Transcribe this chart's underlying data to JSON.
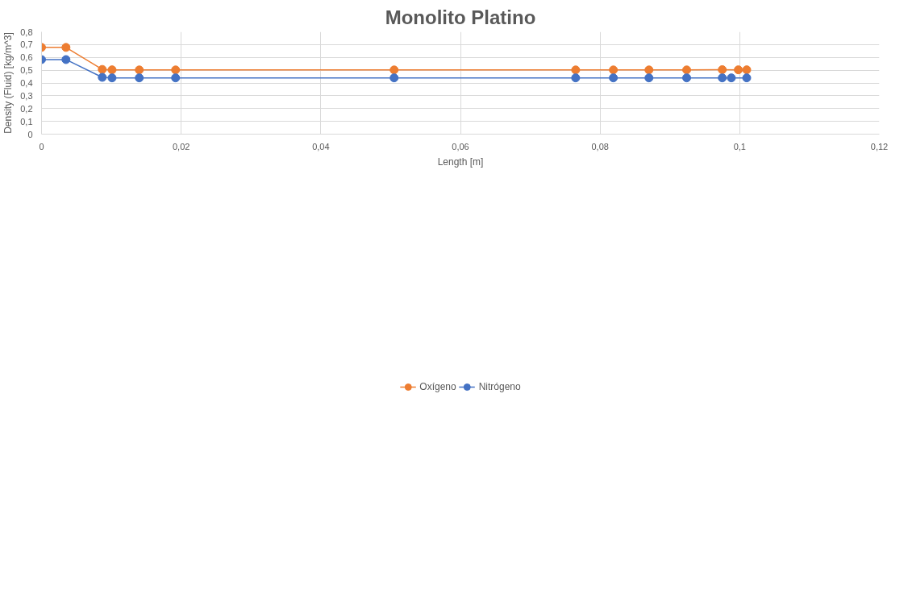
{
  "chart_data": {
    "type": "line",
    "title": "Monolito Platino",
    "xlabel": "Length [m]",
    "ylabel": "Density (Fluid) [kg/m^3]",
    "series": [
      {
        "name": "Oxígeno",
        "color": "#ed7d31",
        "x": [
          0,
          0.0035,
          0.0087,
          0.0101,
          0.014,
          0.0192,
          0.0505,
          0.0765,
          0.0819,
          0.087,
          0.0924,
          0.0975,
          0.0998,
          0.101
        ],
        "values": [
          0.678,
          0.678,
          0.506,
          0.503,
          0.502,
          0.502,
          0.502,
          0.502,
          0.502,
          0.502,
          0.502,
          0.504,
          0.503,
          0.503
        ]
      },
      {
        "name": "Nitrógeno",
        "color": "#4472c4",
        "x": [
          0,
          0.0035,
          0.0087,
          0.0101,
          0.014,
          0.0192,
          0.0505,
          0.0765,
          0.0819,
          0.087,
          0.0924,
          0.0975,
          0.0988,
          0.101
        ],
        "values": [
          0.583,
          0.583,
          0.444,
          0.44,
          0.44,
          0.44,
          0.44,
          0.44,
          0.44,
          0.44,
          0.44,
          0.44,
          0.44,
          0.44
        ]
      }
    ],
    "xlim": [
      0,
      0.12
    ],
    "ylim": [
      0,
      0.8
    ],
    "xticks": [
      0,
      {
        "value": 0.02,
        "label": "0,02"
      },
      {
        "value": 0.04,
        "label": "0,04"
      },
      {
        "value": 0.06,
        "label": "0,06"
      },
      {
        "value": 0.08,
        "label": "0,08"
      },
      {
        "value": 0.1,
        "label": "0,1"
      },
      {
        "value": 0.12,
        "label": "0,12"
      }
    ],
    "yticks": [
      0,
      {
        "value": 0.1,
        "label": "0,1"
      },
      {
        "value": 0.2,
        "label": "0,2"
      },
      {
        "value": 0.3,
        "label": "0,3"
      },
      {
        "value": 0.4,
        "label": "0,4"
      },
      {
        "value": 0.5,
        "label": "0,5"
      },
      {
        "value": 0.6,
        "label": "0,6"
      },
      {
        "value": 0.7,
        "label": "0,7"
      },
      {
        "value": 0.8,
        "label": "0,8"
      }
    ],
    "grid": true,
    "legend": "bottom",
    "marker": "circle",
    "line_style": "solid"
  }
}
